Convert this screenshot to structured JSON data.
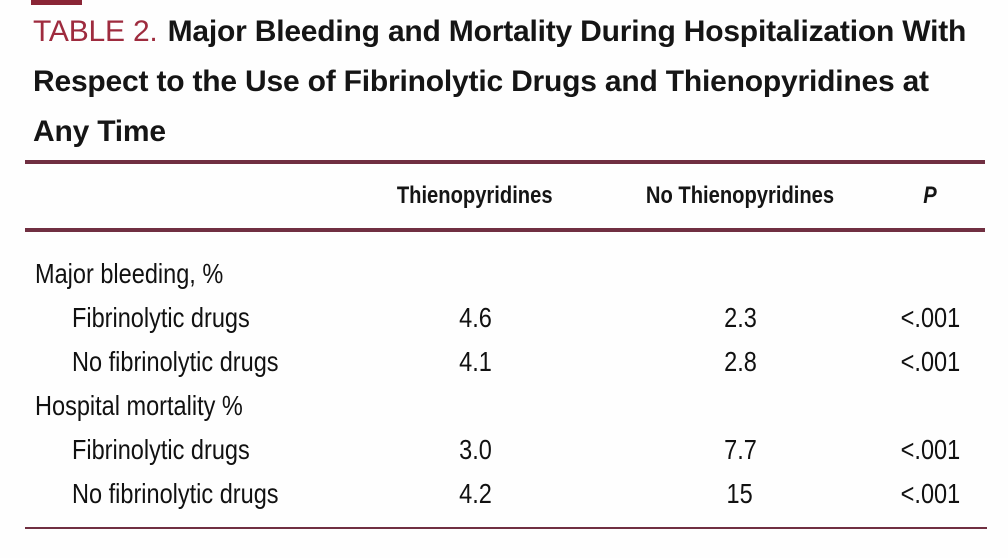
{
  "title": {
    "label": "TABLE 2.",
    "text": "Major Bleeding and Mortality During Hospitalization With Respect to the Use of Fibrinolytic Drugs and Thienopyridines at Any Time"
  },
  "table": {
    "columns": [
      "",
      "Thienopyridines",
      "No Thienopyridines",
      "P"
    ],
    "rows": [
      {
        "label": "Major bleeding, %",
        "indent": false,
        "thienopyridines": "",
        "no_thienopyridines": "",
        "p": ""
      },
      {
        "label": "Fibrinolytic drugs",
        "indent": true,
        "thienopyridines": "4.6",
        "no_thienopyridines": "2.3",
        "p": "<.001"
      },
      {
        "label": "No fibrinolytic drugs",
        "indent": true,
        "thienopyridines": "4.1",
        "no_thienopyridines": "2.8",
        "p": "<.001"
      },
      {
        "label": "Hospital mortality %",
        "indent": false,
        "thienopyridines": "",
        "no_thienopyridines": "",
        "p": ""
      },
      {
        "label": "Fibrinolytic drugs",
        "indent": true,
        "thienopyridines": "3.0",
        "no_thienopyridines": "7.7",
        "p": "<.001"
      },
      {
        "label": "No fibrinolytic drugs",
        "indent": true,
        "thienopyridines": "4.2",
        "no_thienopyridines": "15",
        "p": "<.001"
      }
    ]
  },
  "colors": {
    "rule_maroon": "#702f41",
    "title_label_red": "#9e2b3e",
    "top_fragment_maroon": "#8a2536",
    "text_black": "#111111",
    "background": "#fefefe"
  },
  "chart_data": {
    "type": "table",
    "title": "TABLE 2. Major Bleeding and Mortality During Hospitalization With Respect to the Use of Fibrinolytic Drugs and Thienopyridines at Any Time",
    "columns": [
      "",
      "Thienopyridines",
      "No Thienopyridines",
      "P"
    ],
    "rows": [
      [
        "Major bleeding, %",
        "",
        "",
        ""
      ],
      [
        "Fibrinolytic drugs",
        "4.6",
        "2.3",
        "<.001"
      ],
      [
        "No fibrinolytic drugs",
        "4.1",
        "2.8",
        "<.001"
      ],
      [
        "Hospital mortality %",
        "",
        "",
        ""
      ],
      [
        "Fibrinolytic drugs",
        "3.0",
        "7.7",
        "<.001"
      ],
      [
        "No fibrinolytic drugs",
        "4.2",
        "15",
        "<.001"
      ]
    ]
  }
}
